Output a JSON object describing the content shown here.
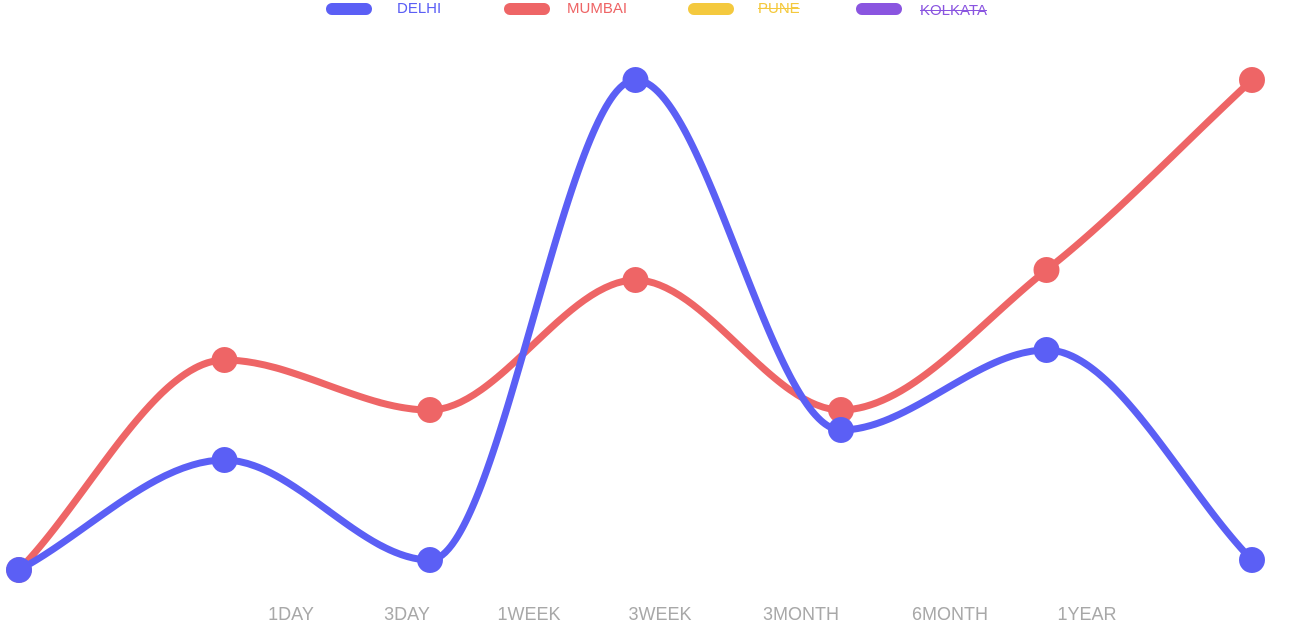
{
  "chart_data": {
    "type": "line",
    "title": "",
    "xlabel": "",
    "ylabel": "",
    "x_tick_labels": [
      "1DAY",
      "3DAY",
      "1WEEK",
      "3WEEK",
      "3MONTH",
      "6MONTH",
      "1YEAR"
    ],
    "points_per_series": 7,
    "y_axis_visible": false,
    "grid": false,
    "legend_position": "top-center",
    "smooth": true,
    "series": [
      {
        "name": "DELHI",
        "color": "#5b5ff5",
        "visible": true,
        "values": [
          10,
          32,
          12,
          108,
          38,
          54,
          12
        ]
      },
      {
        "name": "MUMBAI",
        "color": "#ee6566",
        "visible": true,
        "values": [
          10,
          52,
          42,
          68,
          42,
          70,
          108
        ]
      },
      {
        "name": "PUNE",
        "color": "#f4c93e",
        "visible": false,
        "values": []
      },
      {
        "name": "KOLKATA",
        "color": "#8a55e0",
        "visible": false,
        "values": []
      }
    ]
  }
}
